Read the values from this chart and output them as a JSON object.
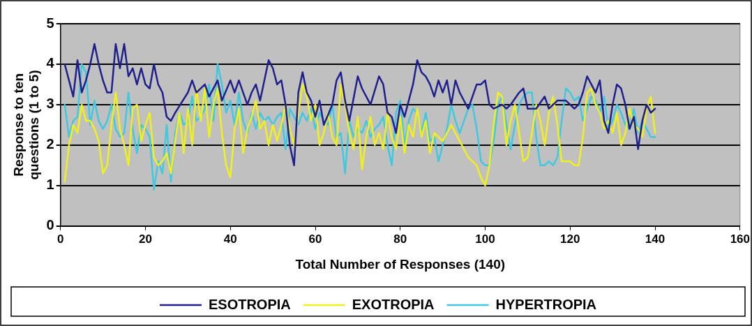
{
  "chart_data": {
    "type": "line",
    "xlabel": "Total Number of Responses (140)",
    "ylabel": "Response to ten questions (1 to 5)",
    "xlim": [
      0,
      160
    ],
    "xticks": [
      0,
      20,
      40,
      60,
      80,
      100,
      120,
      140,
      160
    ],
    "ylim": [
      0,
      5
    ],
    "yticks": [
      0,
      1,
      2,
      3,
      4,
      5
    ],
    "grid": "y",
    "legend": "bottom",
    "marker": "none",
    "line_style": "solid",
    "series": [
      {
        "name": "ESOTROPIA",
        "color": "#1f1f8c",
        "x": [
          1,
          2,
          3,
          4,
          5,
          6,
          7,
          8,
          9,
          10,
          11,
          12,
          13,
          14,
          15,
          16,
          17,
          18,
          19,
          20,
          21,
          22,
          23,
          24,
          25,
          26,
          27,
          30,
          31,
          32,
          34,
          35,
          37,
          38,
          40,
          41,
          42,
          44,
          45,
          46,
          47,
          48,
          49,
          50,
          51,
          52,
          53,
          54,
          55,
          56,
          57,
          58,
          59,
          60,
          61,
          62,
          64,
          65,
          66,
          67,
          68,
          70,
          71,
          73,
          75,
          76,
          77,
          78,
          79,
          80,
          81,
          82,
          83,
          84,
          85,
          86,
          87,
          88,
          89,
          90,
          91,
          92,
          93,
          94,
          96,
          97,
          98,
          99,
          100,
          101,
          102,
          104,
          105,
          106,
          108,
          109,
          110,
          112,
          114,
          115,
          117,
          119,
          121,
          122,
          123,
          124,
          125,
          126,
          127,
          128,
          129,
          130,
          131,
          132,
          133,
          134,
          135,
          136,
          137,
          138,
          139,
          140
        ],
        "values": [
          4.0,
          3.6,
          3.2,
          4.1,
          3.3,
          3.6,
          4.0,
          4.5,
          4.0,
          3.6,
          3.3,
          3.3,
          4.5,
          3.9,
          4.5,
          3.7,
          3.9,
          3.5,
          3.9,
          3.5,
          3.4,
          4.0,
          3.5,
          3.3,
          2.7,
          2.6,
          2.8,
          3.3,
          3.6,
          3.3,
          3.5,
          3.2,
          3.6,
          3.1,
          3.6,
          3.3,
          3.6,
          3.0,
          3.3,
          3.5,
          3.1,
          3.6,
          4.1,
          3.9,
          3.5,
          3.6,
          3.0,
          2.0,
          1.5,
          3.3,
          3.8,
          3.3,
          3.1,
          2.7,
          3.1,
          2.5,
          3.0,
          3.6,
          3.8,
          3.1,
          2.6,
          3.7,
          3.4,
          3.0,
          3.7,
          3.5,
          2.8,
          2.7,
          2.3,
          3.0,
          2.7,
          3.1,
          3.5,
          4.1,
          3.8,
          3.7,
          3.5,
          3.2,
          3.6,
          3.3,
          3.6,
          3.0,
          3.6,
          3.3,
          2.9,
          3.2,
          3.5,
          3.5,
          3.6,
          3.0,
          2.9,
          3.0,
          2.9,
          3.0,
          3.3,
          3.4,
          2.9,
          2.9,
          3.2,
          2.9,
          3.1,
          3.1,
          2.9,
          3.0,
          3.3,
          3.7,
          3.5,
          3.3,
          3.6,
          2.6,
          2.3,
          3.0,
          3.5,
          3.4,
          3.0,
          2.4,
          2.7,
          1.9,
          2.6,
          3.0,
          2.8,
          2.9
        ]
      },
      {
        "name": "EXOTROPIA",
        "color": "#f0f020",
        "x": [
          1,
          2,
          3,
          4,
          5,
          6,
          7,
          8,
          9,
          10,
          11,
          12,
          13,
          14,
          15,
          16,
          17,
          18,
          19,
          20,
          21,
          22,
          23,
          24,
          25,
          26,
          27,
          28,
          29,
          30,
          31,
          32,
          33,
          34,
          35,
          36,
          37,
          38,
          39,
          40,
          41,
          42,
          43,
          44,
          45,
          46,
          47,
          48,
          49,
          50,
          51,
          52,
          53,
          54,
          55,
          56,
          57,
          58,
          59,
          60,
          61,
          62,
          63,
          64,
          65,
          66,
          67,
          68,
          69,
          70,
          71,
          72,
          73,
          74,
          75,
          76,
          77,
          78,
          79,
          80,
          81,
          82,
          83,
          84,
          85,
          86,
          87,
          88,
          90,
          92,
          94,
          96,
          98,
          99,
          100,
          101,
          102,
          103,
          104,
          105,
          106,
          107,
          108,
          109,
          110,
          111,
          112,
          113,
          114,
          115,
          116,
          117,
          118,
          119,
          120,
          121,
          122,
          123,
          124,
          125,
          126,
          127,
          128,
          129,
          130,
          131,
          132,
          133,
          134,
          135,
          136,
          137,
          138,
          139,
          140
        ],
        "values": [
          1.1,
          2.0,
          2.5,
          2.3,
          3.0,
          2.6,
          2.6,
          2.4,
          2.1,
          1.3,
          1.5,
          2.5,
          3.3,
          2.4,
          2.0,
          1.5,
          2.9,
          3.0,
          2.1,
          2.5,
          2.8,
          1.7,
          1.5,
          1.6,
          1.8,
          1.3,
          2.1,
          2.8,
          1.8,
          2.9,
          2.0,
          3.4,
          2.6,
          3.4,
          2.2,
          3.0,
          3.4,
          2.3,
          1.5,
          1.2,
          2.4,
          2.9,
          1.8,
          2.4,
          2.7,
          3.1,
          2.4,
          2.6,
          2.0,
          2.5,
          2.1,
          2.5,
          3.0,
          2.4,
          2.0,
          2.8,
          3.5,
          3.2,
          2.6,
          3.0,
          2.0,
          2.3,
          2.8,
          2.2,
          2.0,
          3.5,
          3.0,
          2.3,
          1.9,
          2.7,
          1.4,
          2.2,
          2.7,
          2.0,
          2.3,
          1.9,
          2.8,
          2.2,
          1.9,
          2.7,
          1.8,
          2.5,
          2.2,
          2.9,
          2.2,
          2.6,
          1.8,
          2.3,
          2.1,
          2.5,
          2.1,
          1.7,
          1.5,
          1.2,
          1.0,
          1.5,
          2.5,
          3.3,
          3.2,
          2.0,
          2.6,
          3.0,
          2.3,
          1.6,
          1.7,
          2.3,
          3.0,
          2.6,
          2.0,
          2.8,
          3.2,
          2.5,
          1.6,
          1.6,
          1.6,
          1.5,
          1.5,
          2.2,
          3.3,
          3.4,
          3.0,
          2.8,
          2.4,
          2.6,
          2.3,
          2.8,
          2.0,
          2.3,
          2.9,
          2.5,
          2.4,
          2.2,
          2.9,
          3.2,
          2.3
        ]
      },
      {
        "name": "HYPERTROPIA",
        "color": "#40c8e0",
        "x": [
          1,
          2,
          3,
          4,
          5,
          6,
          7,
          8,
          9,
          10,
          11,
          12,
          13,
          14,
          15,
          16,
          17,
          18,
          19,
          20,
          21,
          22,
          23,
          24,
          25,
          26,
          27,
          28,
          29,
          30,
          31,
          32,
          33,
          34,
          35,
          36,
          37,
          38,
          39,
          40,
          41,
          42,
          43,
          44,
          45,
          46,
          47,
          48,
          49,
          50,
          51,
          52,
          53,
          54,
          55,
          56,
          57,
          58,
          59,
          60,
          61,
          62,
          63,
          64,
          65,
          66,
          67,
          68,
          69,
          70,
          71,
          72,
          73,
          74,
          75,
          76,
          77,
          78,
          79,
          80,
          81,
          82,
          83,
          84,
          85,
          86,
          87,
          88,
          89,
          90,
          91,
          92,
          93,
          94,
          95,
          96,
          97,
          98,
          99,
          100,
          101,
          102,
          103,
          104,
          105,
          106,
          107,
          108,
          109,
          110,
          111,
          112,
          113,
          114,
          115,
          116,
          117,
          118,
          119,
          120,
          121,
          122,
          123,
          124,
          125,
          126,
          127,
          128,
          129,
          130,
          131,
          132,
          133,
          134,
          135,
          136,
          137,
          138,
          139,
          140
        ],
        "values": [
          3.0,
          2.2,
          2.6,
          2.7,
          4.0,
          3.8,
          2.5,
          3.1,
          2.6,
          2.4,
          2.6,
          3.0,
          2.4,
          2.2,
          2.3,
          3.3,
          2.4,
          1.8,
          2.5,
          2.4,
          2.2,
          0.9,
          1.6,
          1.3,
          2.5,
          1.1,
          2.3,
          2.8,
          2.5,
          2.6,
          3.2,
          2.6,
          2.7,
          2.9,
          3.5,
          2.6,
          4.0,
          3.5,
          2.8,
          3.1,
          2.5,
          3.3,
          2.6,
          2.3,
          2.8,
          2.4,
          2.8,
          2.6,
          2.7,
          2.5,
          2.7,
          2.8,
          1.9,
          2.9,
          2.7,
          2.5,
          2.8,
          2.6,
          2.9,
          2.4,
          2.8,
          2.6,
          2.5,
          3.0,
          2.2,
          2.3,
          1.3,
          2.6,
          2.2,
          2.4,
          2.3,
          2.6,
          2.2,
          2.4,
          2.5,
          2.7,
          2.0,
          1.5,
          2.8,
          3.1,
          2.0,
          2.6,
          2.9,
          2.8,
          2.3,
          2.8,
          2.1,
          2.2,
          1.6,
          2.0,
          2.4,
          3.0,
          2.6,
          2.3,
          2.6,
          2.9,
          3.0,
          2.4,
          1.6,
          1.5,
          1.5,
          2.1,
          3.0,
          3.2,
          2.5,
          1.9,
          2.5,
          3.0,
          3.2,
          3.3,
          3.3,
          2.2,
          1.5,
          1.5,
          1.6,
          1.5,
          1.7,
          2.6,
          3.4,
          3.3,
          3.1,
          3.2,
          2.6,
          2.9,
          3.2,
          3.1,
          2.8,
          3.2,
          2.4,
          2.6,
          3.0,
          2.8,
          2.5,
          2.4,
          2.9,
          2.3,
          2.6,
          2.4,
          2.2,
          2.2
        ]
      }
    ]
  }
}
